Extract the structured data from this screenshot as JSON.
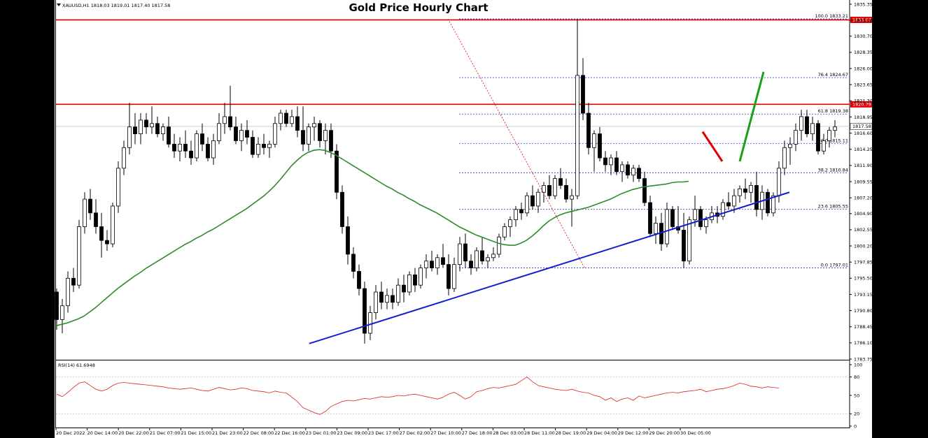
{
  "chart_data": {
    "type": "candlestick",
    "title": "Gold Price Hourly Chart",
    "symbol_info": "XAUUSD,H1  1818.03 1819.01 1817.40 1817.58",
    "y_ticks": [
      "1835.35",
      "1833.00",
      "1830.70",
      "1828.35",
      "1826.00",
      "1823.65",
      "1821.30",
      "1818.95",
      "1816.60",
      "1814.25",
      "1811.90",
      "1809.55",
      "1807.20",
      "1804.90",
      "1802.55",
      "1800.20",
      "1797.85",
      "1795.50",
      "1793.15",
      "1790.80",
      "1788.45",
      "1786.10",
      "1783.75"
    ],
    "ylim": [
      1783.75,
      1835.35
    ],
    "x_labels": [
      "20 Dec 2022",
      "20 Dec 14:00",
      "20 Dec 22:00",
      "21 Dec 07:00",
      "21 Dec 15:00",
      "21 Dec 23:00",
      "22 Dec 08:00",
      "22 Dec 16:00",
      "23 Dec 01:00",
      "23 Dec 09:00",
      "23 Dec 17:00",
      "27 Dec 02:00",
      "27 Dec 10:00",
      "27 Dec 18:00",
      "28 Dec 03:00",
      "28 Dec 11:00",
      "28 Dec 19:00",
      "29 Dec 04:00",
      "29 Dec 12:00",
      "29 Dec 20:00",
      "30 Dec 05:00"
    ],
    "price_levels": [
      {
        "label": "1833.07",
        "value": 1833.07,
        "color": "#e00000"
      },
      {
        "label": "1820.79",
        "value": 1820.79,
        "color": "#e00000"
      },
      {
        "label": "1817.58",
        "value": 1817.58,
        "color": "#c0c0c0"
      }
    ],
    "fib_levels": [
      {
        "label": "100.0 1833.21",
        "value": 1833.21
      },
      {
        "label": "76.4 1824.67",
        "value": 1824.67
      },
      {
        "label": "61.8 1819.38",
        "value": 1819.38
      },
      {
        "label": "50.0 1815.11",
        "value": 1815.11
      },
      {
        "label": "38.2 1810.84",
        "value": 1810.84
      },
      {
        "label": "23.6 1805.55",
        "value": 1805.55
      },
      {
        "label": "0.0 1797.01",
        "value": 1797.01
      }
    ],
    "candles_ohlc": [
      [
        1793.5,
        1794,
        1788,
        1789.5
      ],
      [
        1789.5,
        1792.5,
        1787.5,
        1791.5
      ],
      [
        1791.5,
        1796.5,
        1790.5,
        1795.5
      ],
      [
        1795.5,
        1797,
        1793.5,
        1794.5
      ],
      [
        1794.5,
        1804,
        1794,
        1803
      ],
      [
        1803,
        1808,
        1802,
        1807
      ],
      [
        1807,
        1808.5,
        1804,
        1805
      ],
      [
        1805,
        1807,
        1802,
        1803
      ],
      [
        1803,
        1805,
        1798.5,
        1801
      ],
      [
        1801,
        1802.5,
        1799.5,
        1800.5
      ],
      [
        1800.5,
        1806.5,
        1800,
        1806
      ],
      [
        1806,
        1812.5,
        1805,
        1811.5
      ],
      [
        1811.5,
        1815.5,
        1810.5,
        1814.5
      ],
      [
        1814.5,
        1821,
        1813.5,
        1817.5
      ],
      [
        1817.5,
        1819.5,
        1815,
        1816.5
      ],
      [
        1816.5,
        1819.5,
        1815,
        1818.5
      ],
      [
        1818.5,
        1819.5,
        1816.5,
        1817.5
      ],
      [
        1817.5,
        1820.5,
        1816.5,
        1818
      ],
      [
        1818,
        1819,
        1816,
        1816.5
      ],
      [
        1816.5,
        1818,
        1815.5,
        1817.5
      ],
      [
        1817.5,
        1819,
        1814.5,
        1815
      ],
      [
        1815,
        1816.5,
        1813,
        1814
      ],
      [
        1814,
        1816,
        1812.5,
        1815
      ],
      [
        1815,
        1817,
        1813,
        1814
      ],
      [
        1814,
        1815.5,
        1812,
        1813
      ],
      [
        1813,
        1817,
        1812.5,
        1816.5
      ],
      [
        1816.5,
        1818,
        1814,
        1815
      ],
      [
        1815,
        1816,
        1812.5,
        1813
      ],
      [
        1813,
        1816.5,
        1812,
        1815.5
      ],
      [
        1815.5,
        1819.5,
        1815,
        1818
      ],
      [
        1818,
        1821,
        1816.5,
        1819
      ],
      [
        1819,
        1823.5,
        1817,
        1817.5
      ],
      [
        1817.5,
        1819,
        1815,
        1815.5
      ],
      [
        1815.5,
        1818,
        1814,
        1817
      ],
      [
        1817,
        1818.5,
        1815,
        1816
      ],
      [
        1816,
        1817,
        1813,
        1813.5
      ],
      [
        1813.5,
        1816,
        1813,
        1815
      ],
      [
        1815,
        1816.5,
        1813.5,
        1814.5
      ],
      [
        1814.5,
        1815.5,
        1813,
        1815
      ],
      [
        1815,
        1819,
        1814.5,
        1818
      ],
      [
        1818,
        1820,
        1817,
        1819.5
      ],
      [
        1819.5,
        1820,
        1817.5,
        1818
      ],
      [
        1818,
        1820,
        1817.5,
        1819
      ],
      [
        1819,
        1820.5,
        1816,
        1817
      ],
      [
        1817,
        1820.5,
        1814,
        1815
      ],
      [
        1815,
        1818,
        1814,
        1817.5
      ],
      [
        1817.5,
        1819,
        1815.5,
        1818
      ],
      [
        1818,
        1818.5,
        1814.5,
        1815.5
      ],
      [
        1815.5,
        1818,
        1813.5,
        1817
      ],
      [
        1817,
        1818,
        1813,
        1814
      ],
      [
        1814,
        1815,
        1807,
        1808
      ],
      [
        1808,
        1809,
        1802,
        1803
      ],
      [
        1803,
        1804.5,
        1797.5,
        1799
      ],
      [
        1799,
        1800,
        1795.5,
        1796.5
      ],
      [
        1796.5,
        1797.5,
        1793,
        1794
      ],
      [
        1794,
        1795,
        1786,
        1787.5
      ],
      [
        1787.5,
        1791.5,
        1786.5,
        1790.5
      ],
      [
        1790.5,
        1794.5,
        1789.5,
        1793.5
      ],
      [
        1793.5,
        1795,
        1791,
        1792
      ],
      [
        1792,
        1794,
        1791,
        1793
      ],
      [
        1793,
        1794,
        1791,
        1792
      ],
      [
        1792,
        1795.5,
        1791.5,
        1794.5
      ],
      [
        1794.5,
        1796,
        1792,
        1793.5
      ],
      [
        1793.5,
        1796.5,
        1793,
        1796
      ],
      [
        1796,
        1797,
        1793.5,
        1794.5
      ],
      [
        1794.5,
        1797.5,
        1794,
        1797
      ],
      [
        1797,
        1799,
        1795.5,
        1798
      ],
      [
        1798,
        1799.5,
        1796.5,
        1797
      ],
      [
        1797,
        1799,
        1796,
        1798.5
      ],
      [
        1798.5,
        1800.5,
        1797,
        1797.5
      ],
      [
        1797.5,
        1799,
        1793,
        1794
      ],
      [
        1794,
        1798.5,
        1793.5,
        1797.5
      ],
      [
        1797.5,
        1801.5,
        1796.5,
        1800.5
      ],
      [
        1800.5,
        1802,
        1797,
        1798
      ],
      [
        1798,
        1799,
        1796,
        1797
      ],
      [
        1797,
        1800,
        1796.5,
        1799.5
      ],
      [
        1799.5,
        1801.5,
        1797.5,
        1798
      ],
      [
        1798,
        1799,
        1797,
        1798.5
      ],
      [
        1798.5,
        1800,
        1798,
        1799
      ],
      [
        1799,
        1802,
        1798.5,
        1801.5
      ],
      [
        1801.5,
        1803.5,
        1801,
        1803
      ],
      [
        1803,
        1804.5,
        1801.5,
        1804
      ],
      [
        1804,
        1806,
        1803,
        1805.5
      ],
      [
        1805.5,
        1806.5,
        1804,
        1805
      ],
      [
        1805,
        1808,
        1804.5,
        1807.5
      ],
      [
        1807.5,
        1809,
        1805.5,
        1806
      ],
      [
        1806,
        1808.5,
        1805,
        1808
      ],
      [
        1808,
        1809.5,
        1806.5,
        1809
      ],
      [
        1809,
        1810.5,
        1807,
        1807.5
      ],
      [
        1807.5,
        1810.5,
        1807,
        1810
      ],
      [
        1810,
        1811.5,
        1808.5,
        1809
      ],
      [
        1809,
        1810,
        1806.5,
        1807
      ],
      [
        1807,
        1808.5,
        1803,
        1807.5
      ],
      [
        1807.5,
        1833.2,
        1807,
        1825
      ],
      [
        1825,
        1827.5,
        1818.5,
        1819.5
      ],
      [
        1819.5,
        1821,
        1813.5,
        1814.5
      ],
      [
        1814.5,
        1817,
        1811,
        1816.5
      ],
      [
        1816.5,
        1817.5,
        1812.5,
        1813
      ],
      [
        1813,
        1814,
        1811,
        1812
      ],
      [
        1812,
        1813.5,
        1810.5,
        1813
      ],
      [
        1813,
        1814,
        1810.5,
        1811
      ],
      [
        1811,
        1812.5,
        1809.5,
        1812
      ],
      [
        1812,
        1812.5,
        1810,
        1810.5
      ],
      [
        1810.5,
        1812,
        1809.5,
        1811.5
      ],
      [
        1811.5,
        1812,
        1809.5,
        1810
      ],
      [
        1810,
        1811,
        1806,
        1806.5
      ],
      [
        1806.5,
        1807.5,
        1801.5,
        1802
      ],
      [
        1802,
        1804.5,
        1800.5,
        1803.5
      ],
      [
        1803.5,
        1805,
        1799.5,
        1800.5
      ],
      [
        1800.5,
        1806.5,
        1800,
        1805.5
      ],
      [
        1805.5,
        1806,
        1802.5,
        1803
      ],
      [
        1803,
        1806,
        1802,
        1802.5
      ],
      [
        1802.5,
        1805,
        1797,
        1798
      ],
      [
        1798,
        1804.5,
        1797.5,
        1804
      ],
      [
        1804,
        1807.5,
        1803,
        1805.5
      ],
      [
        1805.5,
        1806,
        1802.5,
        1803
      ],
      [
        1803,
        1804.5,
        1802,
        1804
      ],
      [
        1804,
        1806,
        1803.5,
        1805
      ],
      [
        1805,
        1806,
        1803.5,
        1804.5
      ],
      [
        1804.5,
        1807,
        1804,
        1806.5
      ],
      [
        1806.5,
        1808,
        1805.5,
        1806
      ],
      [
        1806,
        1808.5,
        1805,
        1807.5
      ],
      [
        1807.5,
        1809,
        1806.5,
        1808.5
      ],
      [
        1808.5,
        1810,
        1807,
        1808
      ],
      [
        1808,
        1809.5,
        1806.5,
        1809
      ],
      [
        1809,
        1811,
        1804.5,
        1805.5
      ],
      [
        1805.5,
        1809,
        1804,
        1808
      ],
      [
        1808,
        1808.5,
        1804.5,
        1805
      ],
      [
        1805,
        1808,
        1804.5,
        1807.5
      ],
      [
        1807.5,
        1812.5,
        1806.5,
        1811.5
      ],
      [
        1811.5,
        1815.5,
        1810.5,
        1814.5
      ],
      [
        1814.5,
        1816,
        1812,
        1815
      ],
      [
        1815,
        1818,
        1814,
        1817
      ],
      [
        1817,
        1820,
        1815.5,
        1819
      ],
      [
        1819,
        1820,
        1816,
        1816.5
      ],
      [
        1816.5,
        1819,
        1815.5,
        1818
      ],
      [
        1818,
        1818.5,
        1813.5,
        1814
      ],
      [
        1814,
        1816.5,
        1813.5,
        1815.5
      ],
      [
        1815.5,
        1817.5,
        1814.5,
        1817
      ],
      [
        1817,
        1818.5,
        1816,
        1817.5
      ]
    ],
    "ma_line": [
      1788.6,
      1788.8,
      1789.0,
      1789.3,
      1789.6,
      1790.0,
      1790.6,
      1791.2,
      1791.9,
      1792.6,
      1793.3,
      1794.0,
      1794.6,
      1795.2,
      1795.8,
      1796.3,
      1796.9,
      1797.4,
      1797.9,
      1798.4,
      1798.9,
      1799.4,
      1799.9,
      1800.4,
      1800.8,
      1801.3,
      1801.7,
      1802.2,
      1802.6,
      1803.1,
      1803.6,
      1804.1,
      1804.6,
      1805.1,
      1805.6,
      1806.2,
      1806.8,
      1807.4,
      1808.1,
      1808.9,
      1809.8,
      1810.8,
      1811.8,
      1812.6,
      1813.3,
      1813.8,
      1814.1,
      1814.2,
      1814.1,
      1813.8,
      1813.4,
      1812.9,
      1812.4,
      1811.9,
      1811.4,
      1810.9,
      1810.4,
      1809.9,
      1809.4,
      1808.9,
      1808.5,
      1808.0,
      1807.6,
      1807.1,
      1806.7,
      1806.2,
      1805.8,
      1805.4,
      1805.0,
      1804.5,
      1804.0,
      1803.5,
      1803.0,
      1802.6,
      1802.2,
      1801.8,
      1801.5,
      1801.2,
      1800.9,
      1800.6,
      1800.4,
      1800.3,
      1800.3,
      1800.6,
      1801.0,
      1801.6,
      1802.3,
      1803.1,
      1803.8,
      1804.3,
      1804.7,
      1805.0,
      1805.2,
      1805.4,
      1805.6,
      1805.8,
      1806.1,
      1806.4,
      1806.7,
      1807.0,
      1807.4,
      1807.8,
      1808.1,
      1808.4,
      1808.6,
      1808.8,
      1808.9,
      1809.0,
      1809.1,
      1809.2,
      1809.4,
      1809.5,
      1809.5,
      1809.6
    ],
    "trendlines": [
      {
        "name": "rising support",
        "from": [
          0.2,
          1786.0
        ],
        "to": [
          1.0,
          1808.0
        ],
        "color": "#1020d0"
      },
      {
        "name": "fib swing",
        "from": [
          0.494,
          1833.2
        ],
        "to": [
          0.6,
          1797.0
        ],
        "color": "#e00000",
        "dashed": true
      }
    ],
    "arrows": [
      {
        "color": "#e00000",
        "from": [
          1816.8
        ],
        "to": [
          1812.5
        ]
      },
      {
        "color": "#18a018",
        "from": [
          1812.5
        ],
        "to": [
          1825.5
        ]
      }
    ],
    "rsi": {
      "label": "RSI(14) 61.6948",
      "y_ticks": [
        "100",
        "80",
        "50",
        "20",
        "0"
      ],
      "values": [
        52,
        48,
        55,
        63,
        70,
        72,
        66,
        60,
        57,
        60,
        66,
        70,
        71,
        70,
        69,
        68,
        67,
        66,
        65,
        64,
        62,
        61,
        60,
        61,
        62,
        60,
        58,
        57,
        60,
        63,
        61,
        59,
        60,
        62,
        61,
        58,
        57,
        56,
        54,
        57,
        55,
        54,
        47,
        40,
        30,
        26,
        22,
        19,
        24,
        32,
        36,
        40,
        42,
        41,
        43,
        45,
        44,
        46,
        48,
        47,
        48,
        50,
        49,
        51,
        52,
        50,
        48,
        46,
        44,
        47,
        52,
        55,
        50,
        44,
        48,
        56,
        58,
        61,
        63,
        62,
        64,
        66,
        68,
        74,
        80,
        72,
        66,
        64,
        62,
        60,
        59,
        58,
        60,
        57,
        55,
        54,
        50,
        48,
        42,
        46,
        40,
        44,
        46,
        42,
        49,
        46,
        48,
        50,
        52,
        54,
        55,
        54,
        56,
        57,
        58,
        60,
        56,
        58,
        60,
        61,
        63,
        66,
        70,
        68,
        65,
        64,
        62,
        64,
        63,
        62
      ]
    }
  }
}
